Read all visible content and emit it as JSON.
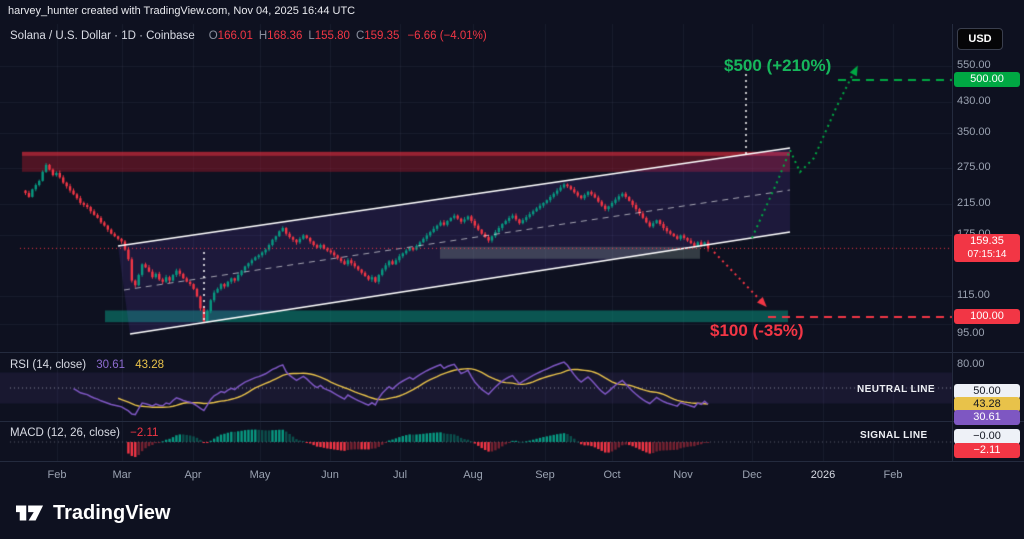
{
  "attribution": "harvey_hunter created with TradingView.com, Nov 04, 2025 16:44 UTC",
  "currency_button": "USD",
  "symbol": {
    "title": "Solana / U.S. Dollar · 1D · Coinbase",
    "fields": [
      {
        "label": "O",
        "value": "166.01"
      },
      {
        "label": "H",
        "value": "168.36"
      },
      {
        "label": "L",
        "value": "155.80"
      },
      {
        "label": "C",
        "value": "159.35"
      }
    ],
    "change": "−6.66 (−4.01%)"
  },
  "price_axis": {
    "tick_labels": [
      "550.00",
      "430.00",
      "350.00",
      "275.00",
      "215.00",
      "175.00",
      "115.00",
      "95.00"
    ],
    "tick_values": [
      550,
      430,
      350,
      275,
      215,
      175,
      115,
      95
    ],
    "target_badge": "500.00",
    "last_badge": "159.35",
    "countdown": "07:15:14",
    "support_badge": "100.00"
  },
  "annotations": {
    "target_up": "$500 (+210%)",
    "target_down": "$100 (-35%)"
  },
  "rsi": {
    "title": "RSI (14, close)",
    "value": "30.61",
    "ma_value": "43.28",
    "tick_top": "80.00",
    "badge_mid": "50.00",
    "badge_ma": "43.28",
    "badge_value": "30.61",
    "neutral_label": "NEUTRAL LINE"
  },
  "macd": {
    "title": "MACD (12, 26, close)",
    "value": "−2.11",
    "badge_zero": "−0.00",
    "badge_value": "−2.11",
    "signal_label": "SIGNAL LINE"
  },
  "time_axis": {
    "labels": [
      "Feb",
      "Mar",
      "Apr",
      "May",
      "Jun",
      "Jul",
      "Aug",
      "Sep",
      "Oct",
      "Nov",
      "Dec",
      "2026",
      "Feb"
    ]
  },
  "logo_text": "TradingView",
  "colors": {
    "up": "#089981",
    "down": "#f23645",
    "rsi": "#7e57c2",
    "rsi_ma": "#e8c24a",
    "target_green": "#00a843",
    "channel_white": "#ffffff"
  },
  "chart_data": {
    "type": "candlestick",
    "symbol": "SOL/USD",
    "interval": "1D",
    "exchange": "Coinbase",
    "scale": "log",
    "last": {
      "open": 166.01,
      "high": 168.36,
      "low": 155.8,
      "close": 159.35,
      "change": -6.66,
      "change_pct": -4.01
    },
    "closes": [
      232,
      226,
      238,
      245,
      252,
      268,
      281,
      272,
      262,
      266,
      258,
      249,
      243,
      236,
      230,
      224,
      217,
      214,
      211,
      205,
      200,
      196,
      190,
      186,
      181,
      176,
      173,
      170,
      167,
      158,
      148,
      128,
      124,
      133,
      143,
      140,
      136,
      131,
      134,
      129,
      127,
      131,
      128,
      133,
      137,
      134,
      130,
      127,
      125,
      121,
      115,
      106,
      97,
      104,
      112,
      118,
      121,
      125,
      123,
      127,
      130,
      128,
      133,
      137,
      141,
      144,
      147,
      150,
      152,
      155,
      158,
      163,
      169,
      173,
      179,
      183,
      176,
      172,
      169,
      166,
      170,
      174,
      171,
      167,
      163,
      160,
      163,
      159,
      157,
      155,
      152,
      149,
      146,
      143,
      147,
      144,
      141,
      138,
      135,
      132,
      129,
      131,
      127,
      133,
      138,
      142,
      146,
      143,
      147,
      151,
      154,
      157,
      160,
      158,
      162,
      166,
      170,
      174,
      178,
      182,
      186,
      190,
      187,
      192,
      196,
      199,
      195,
      191,
      194,
      198,
      192,
      186,
      181,
      176,
      172,
      168,
      173,
      178,
      183,
      188,
      192,
      196,
      199,
      194,
      189,
      193,
      197,
      201,
      205,
      209,
      213,
      217,
      221,
      226,
      231,
      236,
      241,
      246,
      243,
      238,
      233,
      228,
      224,
      229,
      234,
      230,
      225,
      219,
      213,
      208,
      212,
      217,
      222,
      227,
      231,
      226,
      220,
      214,
      208,
      202,
      196,
      190,
      185,
      189,
      193,
      188,
      183,
      179,
      176,
      173,
      170,
      174,
      171,
      168,
      165,
      162,
      166,
      163,
      166.01,
      159.35
    ],
    "channel": {
      "type": "ascending-parallel",
      "breakdown_at_end": true
    },
    "zones": {
      "resistance": [
        268,
        307
      ],
      "support": [
        96.5,
        104.5
      ],
      "demand_box": [
        148.5,
        161
      ]
    },
    "targets": {
      "up": {
        "price": 500,
        "pct": "+210%"
      },
      "down": {
        "price": 100,
        "pct": "-35%"
      }
    },
    "rsi": {
      "period": 14,
      "value": 30.61,
      "ma": 43.28,
      "neutral": 50
    },
    "macd": {
      "fast": 12,
      "slow": 26,
      "signal": "close",
      "value": -2.11,
      "signal_value": 0
    }
  }
}
